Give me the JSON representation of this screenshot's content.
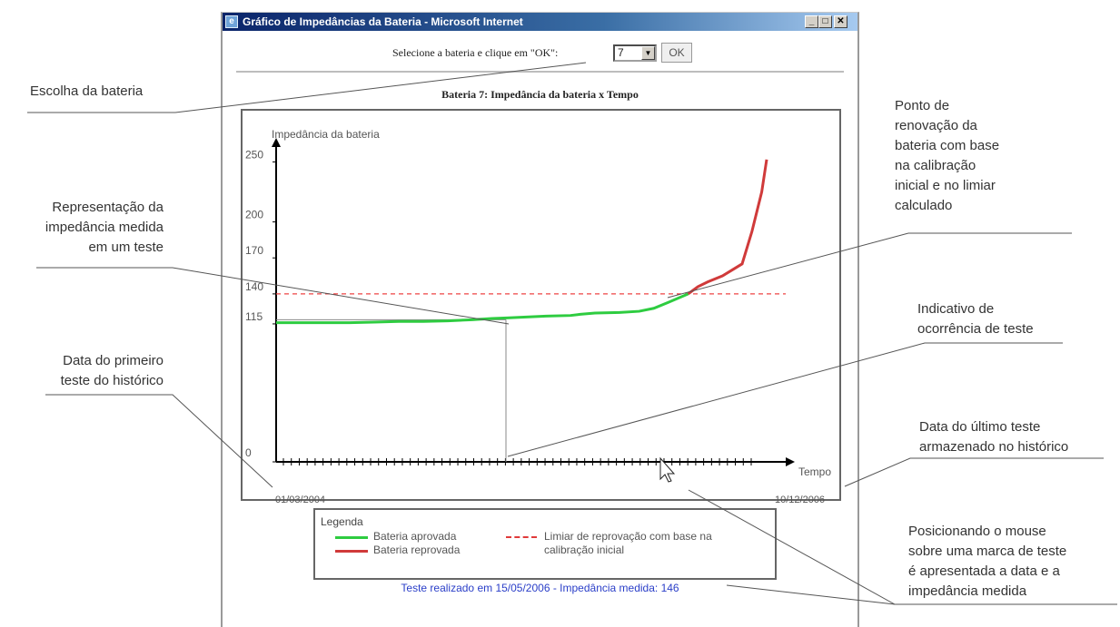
{
  "window": {
    "title": "Gráfico de Impedâncias da Bateria - Microsoft Internet",
    "icon": "ie-app-icon",
    "controls": [
      "minimize",
      "maximize",
      "close"
    ]
  },
  "selector": {
    "prompt_before": "Selecione a bateria e clique em \"OK",
    "prompt_after": "\":",
    "selected_value": "7",
    "ok_label": "OK"
  },
  "chart_data": {
    "type": "line",
    "title": "Bateria 7: Impedância da bateria x Tempo",
    "ylabel": "Impedância da bateria",
    "xlabel": "Tempo",
    "yticks": [
      0,
      115,
      140,
      170,
      200,
      250
    ],
    "ylim": [
      0,
      270
    ],
    "x_start_label": "01/03/2004",
    "x_end_label": "10/12/2006",
    "x": [
      0,
      5,
      10,
      15,
      20,
      25,
      30,
      35,
      40,
      44,
      47,
      50,
      55,
      60,
      62,
      65,
      70,
      74,
      77,
      80,
      84,
      86,
      88,
      91,
      93,
      95,
      100
    ],
    "approved": [
      116,
      116,
      116,
      116,
      116.5,
      117,
      117,
      117.5,
      118.5,
      119.5,
      120,
      120.5,
      121.5,
      122,
      123,
      124,
      124.5,
      125.5,
      128,
      133,
      140,
      144,
      147,
      150,
      152,
      155,
      160
    ],
    "reproved_x": [
      84,
      86,
      88,
      91,
      93,
      95,
      97,
      99,
      100
    ],
    "reproved": [
      140,
      146,
      150,
      155,
      160,
      165,
      192,
      225,
      252
    ],
    "threshold": 140,
    "highlighted_test": {
      "x": 40,
      "y": 118.5
    },
    "test_tick_count": 60,
    "grid": false
  },
  "legend": {
    "title": "Legenda",
    "approved_label": "Bateria aprovada",
    "reproved_label": "Bateria reprovada",
    "threshold_label_1": "Limiar de reprovação com base na",
    "threshold_label_2": "calibração inicial"
  },
  "status": {
    "test_info": "Teste realizado em 15/05/2006 - Impedância medida: 146"
  },
  "annotations": {
    "battery_choice": "Escolha da bateria",
    "impedance_1": "Representação da",
    "impedance_2": "impedância medida",
    "impedance_3": "em um teste",
    "first_date_1": "Data do primeiro",
    "first_date_2": "teste do histórico",
    "renewal_1": "Ponto de",
    "renewal_2": "renovação da",
    "renewal_3": "bateria com base",
    "renewal_4": "na calibração",
    "renewal_5": "inicial e no limiar",
    "renewal_6": "calculado",
    "test_occ_1": "Indicativo de",
    "test_occ_2": "ocorrência de teste",
    "last_date_1": "Data do último teste",
    "last_date_2": "armazenado no histórico",
    "mouse_1": "Posicionando o mouse",
    "mouse_2": "sobre uma marca de teste",
    "mouse_3": "é apresentada a data e a",
    "mouse_4": "impedância medida"
  },
  "colors": {
    "approved": "#2ecc40",
    "reproved": "#d03a3a",
    "threshold": "#ee4444",
    "info_text": "#2a3ec8"
  }
}
